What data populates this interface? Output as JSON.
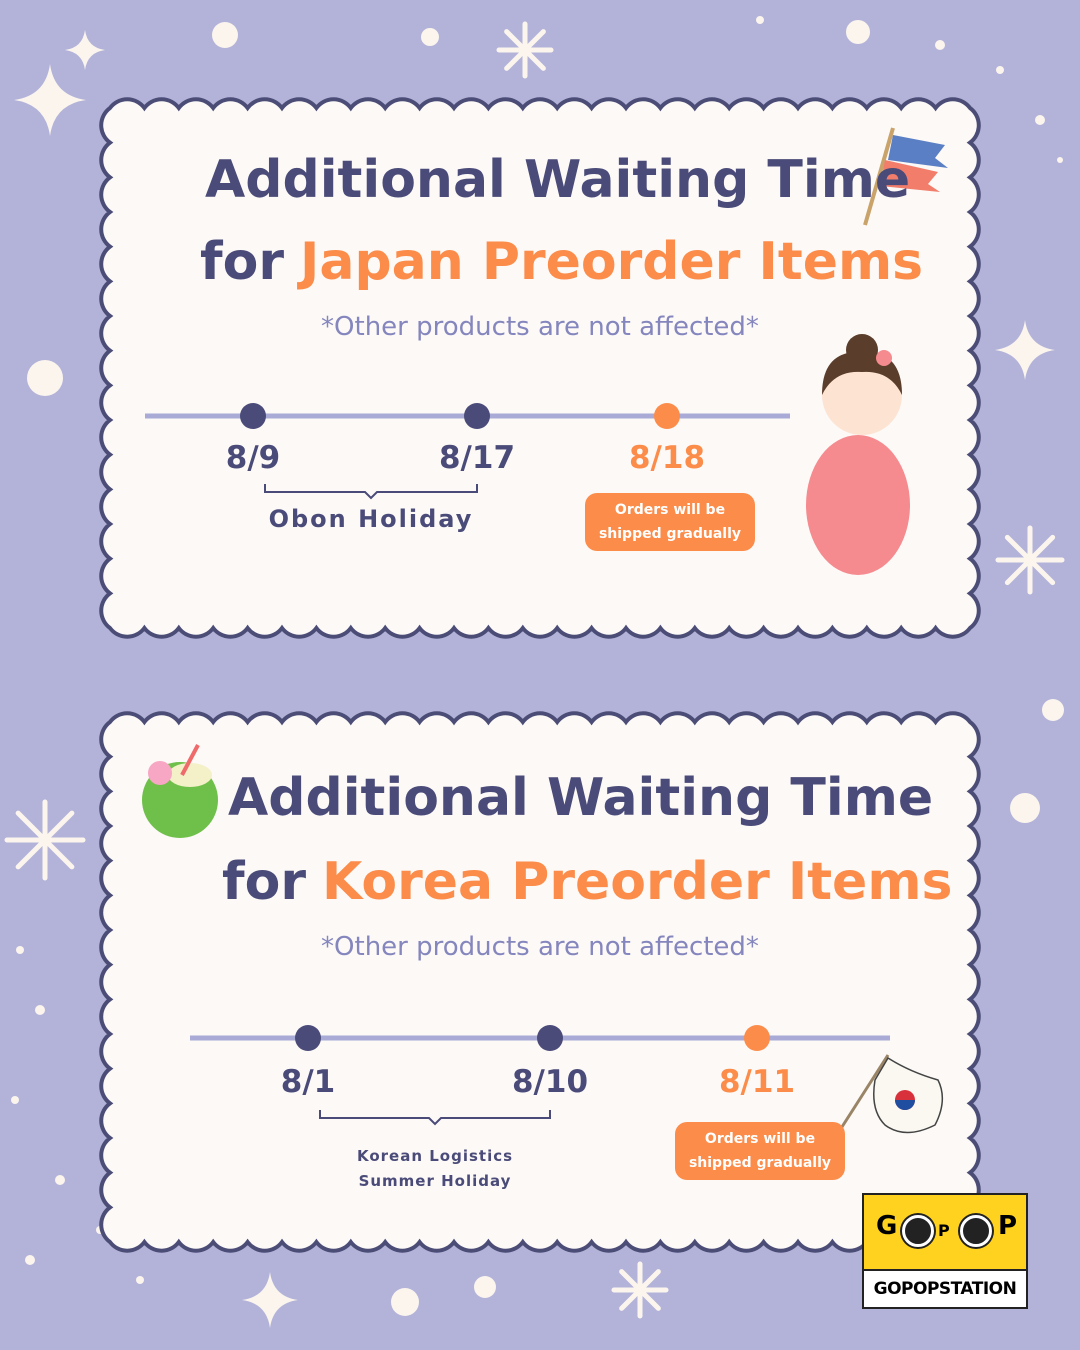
{
  "cards": [
    {
      "title_line1": "Additional Waiting Time",
      "title_for": "for",
      "title_highlight": "Japan Preorder Items",
      "note": "*Other products are not affected*",
      "dates": [
        "8/9",
        "8/17",
        "8/18"
      ],
      "holiday_lines": [
        "Obon Holiday"
      ],
      "shipping_lines": [
        "Orders will be",
        "shipped gradually"
      ]
    },
    {
      "title_line1": "Additional Waiting Time",
      "title_for": "for",
      "title_highlight": "Korea Preorder Items",
      "note": "*Other products are not affected*",
      "dates": [
        "8/1",
        "8/10",
        "8/11"
      ],
      "holiday_lines": [
        "Korean Logistics",
        "Summer Holiday"
      ],
      "shipping_lines": [
        "Orders will be",
        "shipped gradually"
      ]
    }
  ],
  "logo": {
    "letters": [
      "G",
      "P",
      "P"
    ],
    "wordmark": "GOPOPSTATION"
  }
}
